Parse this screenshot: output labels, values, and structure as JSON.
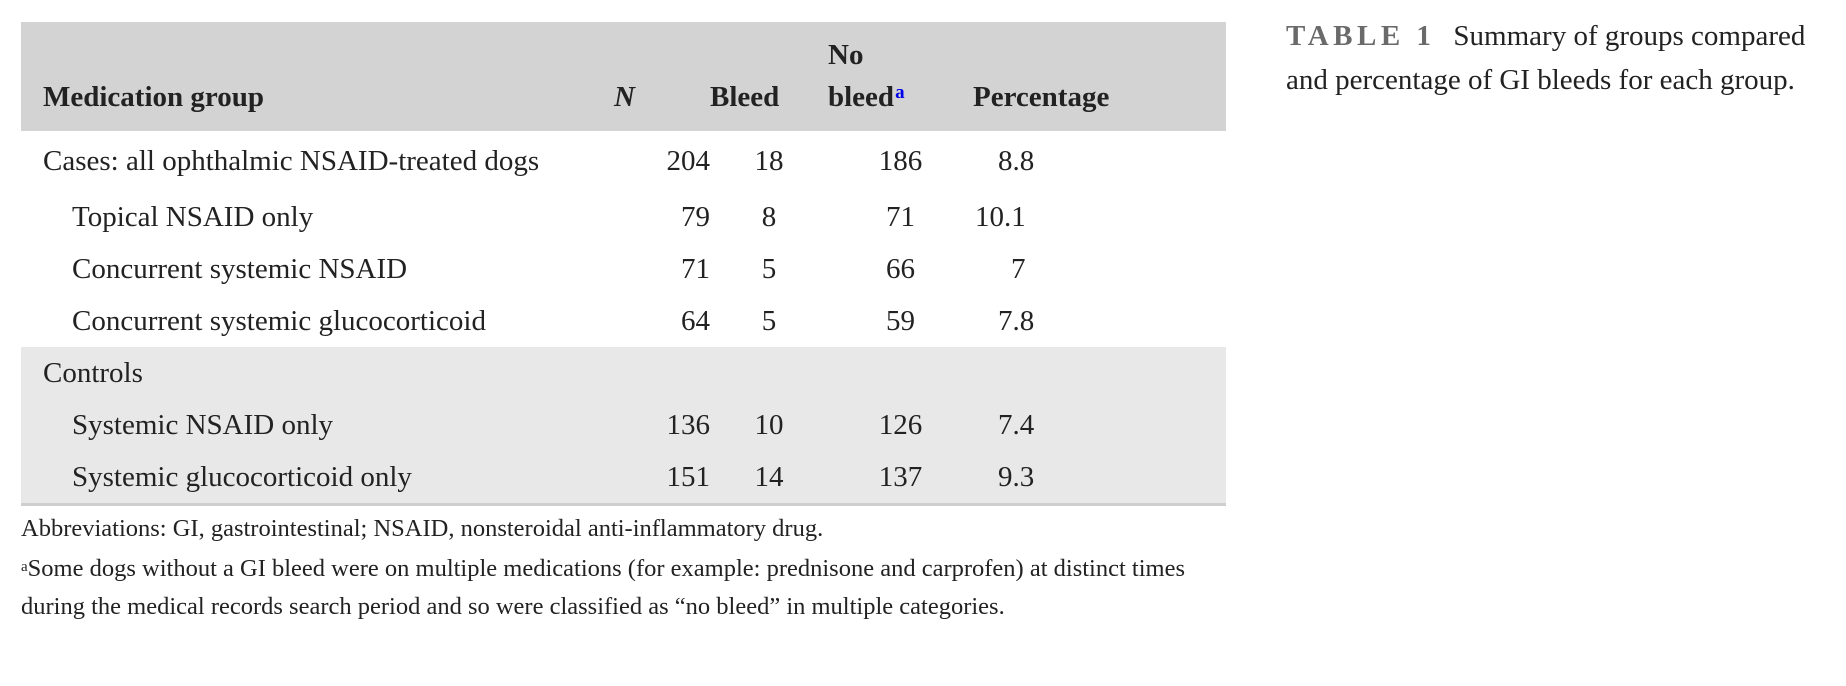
{
  "table": {
    "headers": {
      "group": "Medication group",
      "n": "N",
      "bleed": "Bleed",
      "no_bleed_line1": "No",
      "no_bleed_line2": "bleed",
      "no_bleed_footnote": "a",
      "percentage": "Percentage"
    },
    "rows": [
      {
        "group": "Cases: all ophthalmic NSAID-treated dogs",
        "n": "204",
        "bleed": "18",
        "no_bleed": "186",
        "percentage": "8.8"
      },
      {
        "group": "Topical NSAID only",
        "n": "79",
        "bleed": "8",
        "no_bleed": "71",
        "percentage": "10.1"
      },
      {
        "group": "Concurrent systemic NSAID",
        "n": "71",
        "bleed": "5",
        "no_bleed": "66",
        "percentage": "7"
      },
      {
        "group": "Concurrent systemic glucocorticoid",
        "n": "64",
        "bleed": "5",
        "no_bleed": "59",
        "percentage": "7.8"
      },
      {
        "group": "Controls",
        "n": "",
        "bleed": "",
        "no_bleed": "",
        "percentage": ""
      },
      {
        "group": "Systemic NSAID only",
        "n": "136",
        "bleed": "10",
        "no_bleed": "126",
        "percentage": "7.4"
      },
      {
        "group": "Systemic glucocorticoid only",
        "n": "151",
        "bleed": "14",
        "no_bleed": "137",
        "percentage": "9.3"
      }
    ]
  },
  "notes": {
    "abbreviations": "Abbreviations: GI, gastrointestinal; NSAID, nonsteroidal anti-inflammatory drug.",
    "footnote_marker": "a",
    "footnote_text": "Some dogs without a GI bleed were on multiple medications (for example: prednisone and carprofen) at distinct times during the medical records search period and so were classified as “no bleed” in multiple categories."
  },
  "caption": {
    "label": "TABLE 1",
    "text": "Summary of groups compared and percentage of GI bleeds for each group."
  },
  "colors": {
    "header_bg": "#d3d3d3",
    "controls_bg": "#e8e8e8",
    "caption_label": "#6a6a6a",
    "footnote_link": "#0000ee"
  }
}
